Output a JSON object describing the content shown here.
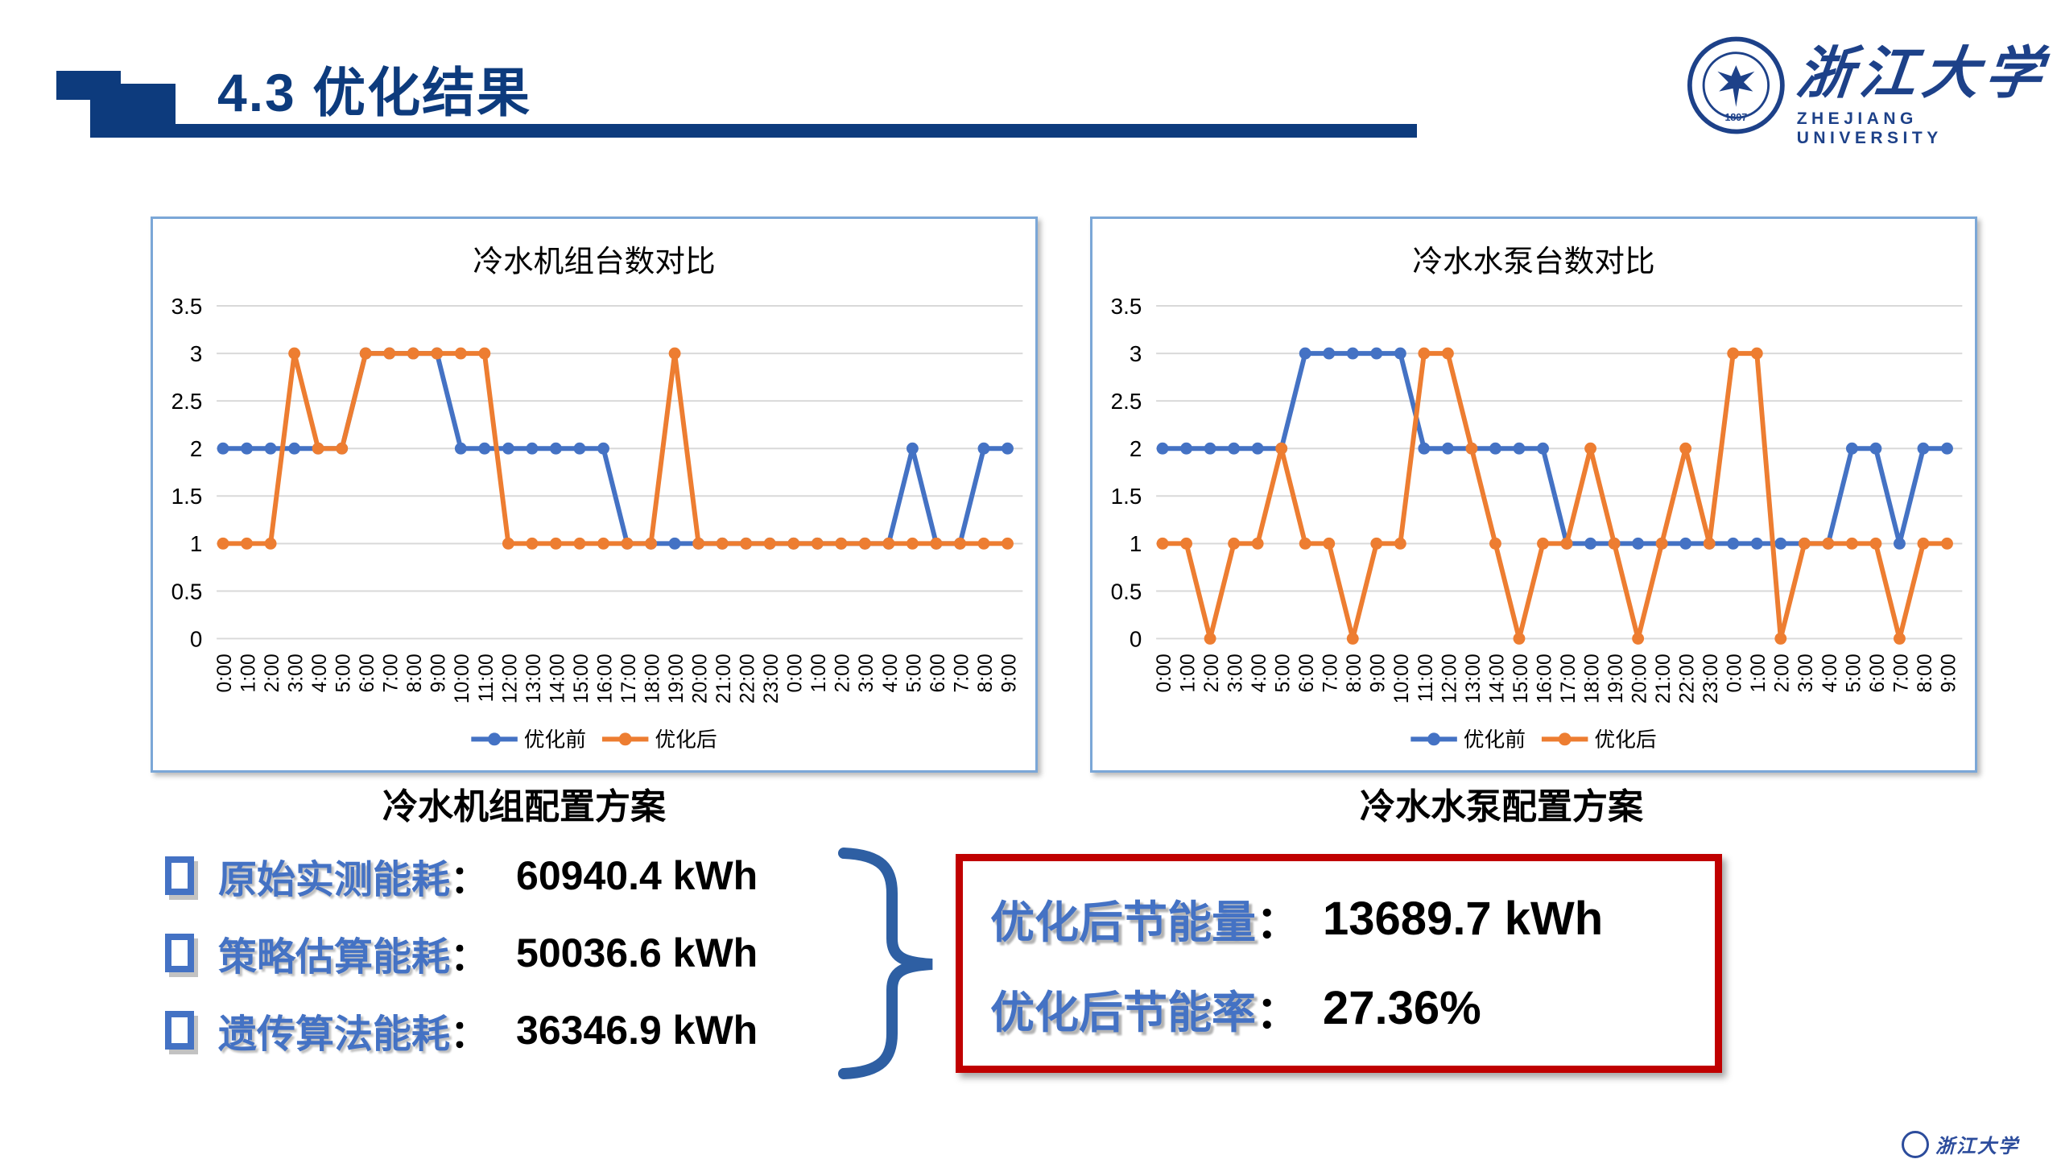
{
  "slide": {
    "title": "4.3 优化结果",
    "accent_color": "#0d3b7d"
  },
  "logo": {
    "cn_name": "浙江大学",
    "en_name": "ZHEJIANG UNIVERSITY",
    "seal_year": "1897",
    "color": "#1d4189"
  },
  "chart_data": [
    {
      "type": "line",
      "title": "冷水机组台数对比",
      "caption": "冷水机组配置方案",
      "xlabel": "",
      "ylabel": "",
      "ylim": [
        0,
        3.5
      ],
      "yticks": [
        0,
        0.5,
        1,
        1.5,
        2,
        2.5,
        3,
        3.5
      ],
      "grid": true,
      "legend_position": "bottom",
      "categories": [
        "0:00",
        "1:00",
        "2:00",
        "3:00",
        "4:00",
        "5:00",
        "6:00",
        "7:00",
        "8:00",
        "9:00",
        "10:00",
        "11:00",
        "12:00",
        "13:00",
        "14:00",
        "15:00",
        "16:00",
        "17:00",
        "18:00",
        "19:00",
        "20:00",
        "21:00",
        "22:00",
        "23:00",
        "0:00",
        "1:00",
        "2:00",
        "3:00",
        "4:00",
        "5:00",
        "6:00",
        "7:00",
        "8:00",
        "9:00"
      ],
      "series": [
        {
          "name": "优化前",
          "color": "#4472c4",
          "values": [
            2,
            2,
            2,
            2,
            2,
            2,
            3,
            3,
            3,
            3,
            2,
            2,
            2,
            2,
            2,
            2,
            2,
            1,
            1,
            1,
            1,
            1,
            1,
            1,
            1,
            1,
            1,
            1,
            1,
            2,
            1,
            1,
            2,
            2
          ]
        },
        {
          "name": "优化后",
          "color": "#ed7d31",
          "values": [
            1,
            1,
            1,
            3,
            2,
            2,
            3,
            3,
            3,
            3,
            3,
            3,
            1,
            1,
            1,
            1,
            1,
            1,
            1,
            3,
            1,
            1,
            1,
            1,
            1,
            1,
            1,
            1,
            1,
            1,
            1,
            1,
            1,
            1
          ]
        }
      ]
    },
    {
      "type": "line",
      "title": "冷水水泵台数对比",
      "caption": "冷水水泵配置方案",
      "xlabel": "",
      "ylabel": "",
      "ylim": [
        0,
        3.5
      ],
      "yticks": [
        0,
        0.5,
        1,
        1.5,
        2,
        2.5,
        3,
        3.5
      ],
      "grid": true,
      "legend_position": "bottom",
      "categories": [
        "0:00",
        "1:00",
        "2:00",
        "3:00",
        "4:00",
        "5:00",
        "6:00",
        "7:00",
        "8:00",
        "9:00",
        "10:00",
        "11:00",
        "12:00",
        "13:00",
        "14:00",
        "15:00",
        "16:00",
        "17:00",
        "18:00",
        "19:00",
        "20:00",
        "21:00",
        "22:00",
        "23:00",
        "0:00",
        "1:00",
        "2:00",
        "3:00",
        "4:00",
        "5:00",
        "6:00",
        "7:00",
        "8:00",
        "9:00"
      ],
      "series": [
        {
          "name": "优化前",
          "color": "#4472c4",
          "values": [
            2,
            2,
            2,
            2,
            2,
            2,
            3,
            3,
            3,
            3,
            3,
            2,
            2,
            2,
            2,
            2,
            2,
            1,
            1,
            1,
            1,
            1,
            1,
            1,
            1,
            1,
            1,
            1,
            1,
            2,
            2,
            1,
            2,
            2
          ]
        },
        {
          "name": "优化后",
          "color": "#ed7d31",
          "values": [
            1,
            1,
            0,
            1,
            1,
            2,
            1,
            1,
            0,
            1,
            1,
            3,
            3,
            2,
            1,
            0,
            1,
            1,
            2,
            1,
            0,
            1,
            2,
            1,
            3,
            3,
            0,
            1,
            1,
            1,
            1,
            0,
            1,
            1
          ]
        }
      ]
    }
  ],
  "summary": {
    "colon": "：",
    "items": [
      {
        "label": "原始实测能耗",
        "value": "60940.4 kWh"
      },
      {
        "label": "策略估算能耗",
        "value": "50036.6 kWh"
      },
      {
        "label": "遗传算法能耗",
        "value": "36346.9 kWh"
      }
    ],
    "result": [
      {
        "label": "优化后节能量",
        "value": "13689.7 kWh"
      },
      {
        "label": "优化后节能率",
        "value": "27.36%"
      }
    ],
    "result_border_color": "#c00000"
  },
  "style": {
    "chart_border_color": "#7ba7d7",
    "gridline_color": "#d9d9d9",
    "series_before_color": "#4472c4",
    "series_after_color": "#ed7d31"
  }
}
